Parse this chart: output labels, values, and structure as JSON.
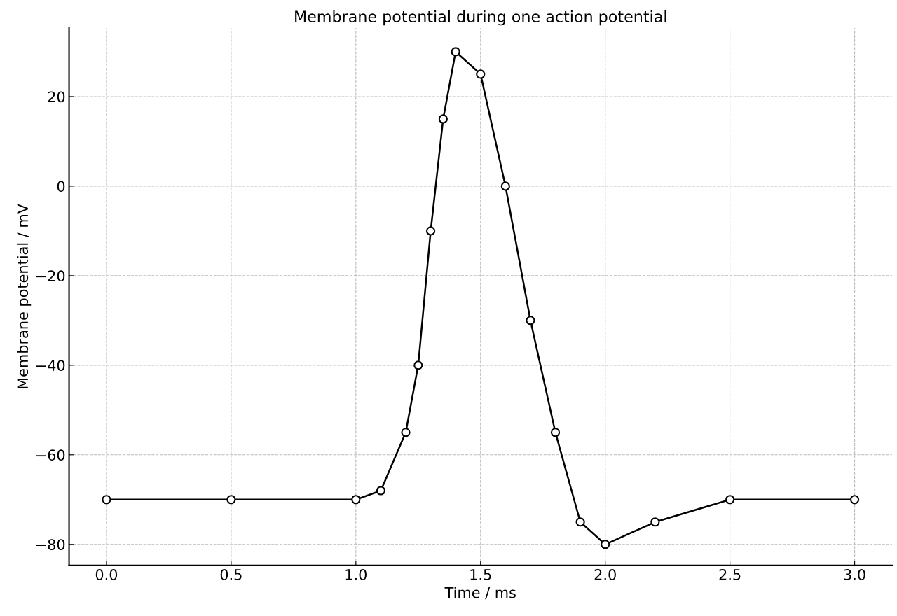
{
  "chart_data": {
    "type": "line",
    "title": "Membrane potential during one action potential",
    "xlabel": "Time / ms",
    "ylabel": "Membrane potential / mV",
    "x": [
      0.0,
      0.5,
      1.0,
      1.1,
      1.2,
      1.25,
      1.3,
      1.35,
      1.4,
      1.5,
      1.6,
      1.7,
      1.8,
      1.9,
      2.0,
      2.2,
      2.5,
      3.0
    ],
    "series": [
      {
        "color": "#000000",
        "values": [
          -70,
          -70,
          -70,
          -68,
          -55,
          -40,
          -10,
          15,
          30,
          25,
          0,
          -30,
          -55,
          -75,
          -80,
          -75,
          -70,
          -70
        ]
      }
    ],
    "xlim": [
      -0.15,
      3.15
    ],
    "xticks": [
      {
        "value": 0,
        "label": "0.0"
      },
      {
        "value": 0.5,
        "label": "0.5"
      },
      {
        "value": 1,
        "label": "1.0"
      },
      {
        "value": 1.5,
        "label": "1.5"
      },
      {
        "value": 2,
        "label": "2.0"
      },
      {
        "value": 2.5,
        "label": "2.5"
      },
      {
        "value": 3,
        "label": "3.0"
      }
    ],
    "ylim": [
      -84.7,
      35.3
    ],
    "yticks": [
      {
        "value": -80,
        "label": "−80"
      },
      {
        "value": -60,
        "label": "−60"
      },
      {
        "value": -40,
        "label": "−40"
      },
      {
        "value": -20,
        "label": "−20"
      },
      0,
      20
    ],
    "grid": true,
    "marker": "circle",
    "line_style": "solid"
  }
}
